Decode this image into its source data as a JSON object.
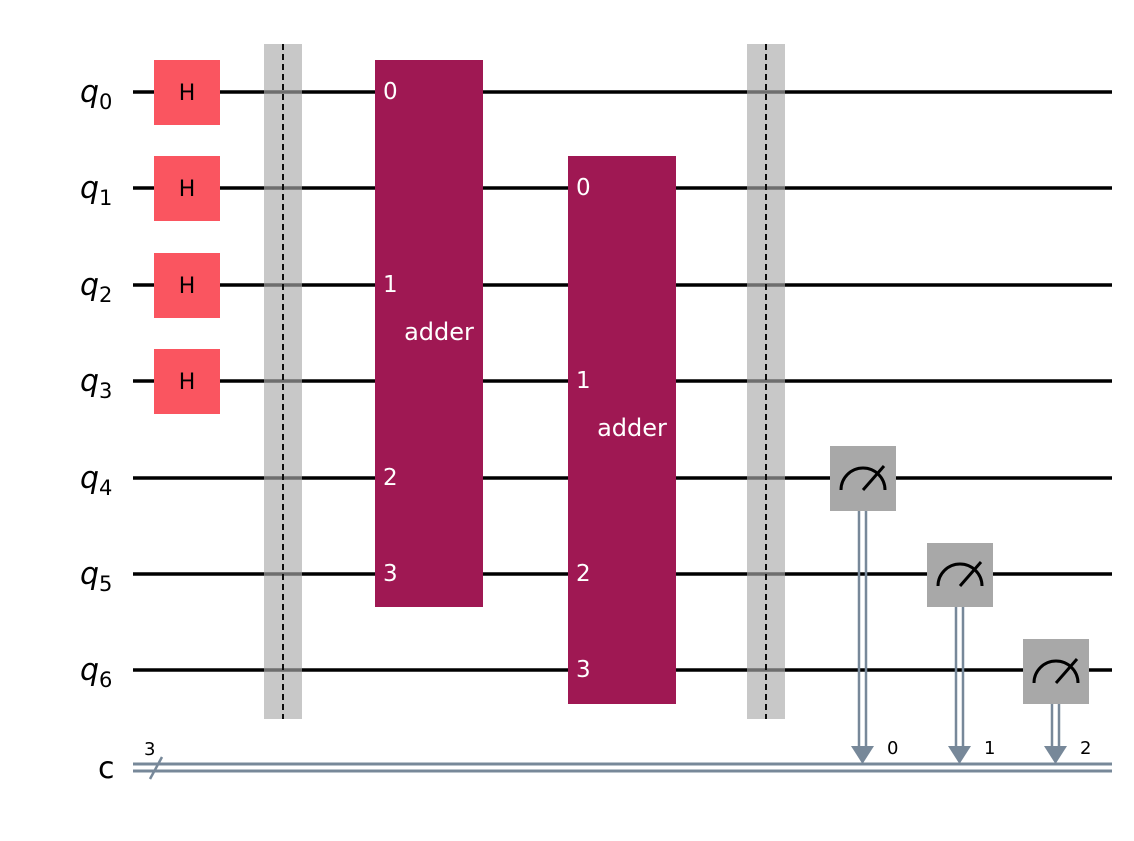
{
  "circuit": {
    "qubits": [
      "q",
      "q",
      "q",
      "q",
      "q",
      "q",
      "q"
    ],
    "qubit_indices": [
      "0",
      "1",
      "2",
      "3",
      "4",
      "5",
      "6"
    ],
    "classical_register": "c",
    "classical_width": "3",
    "h_gates": [
      "H",
      "H",
      "H",
      "H"
    ],
    "adder1": {
      "label": "adder",
      "ports": [
        "0",
        "1",
        "2",
        "3"
      ]
    },
    "adder2": {
      "label": "adder",
      "ports": [
        "0",
        "1",
        "2",
        "3"
      ]
    },
    "measure_bits": [
      "0",
      "1",
      "2"
    ]
  },
  "colors": {
    "h_gate": "#fa5560",
    "adder": "#9f1853",
    "barrier": "#c8c8c8",
    "measure": "#a8a8a8",
    "classical_wire": "#778899"
  }
}
